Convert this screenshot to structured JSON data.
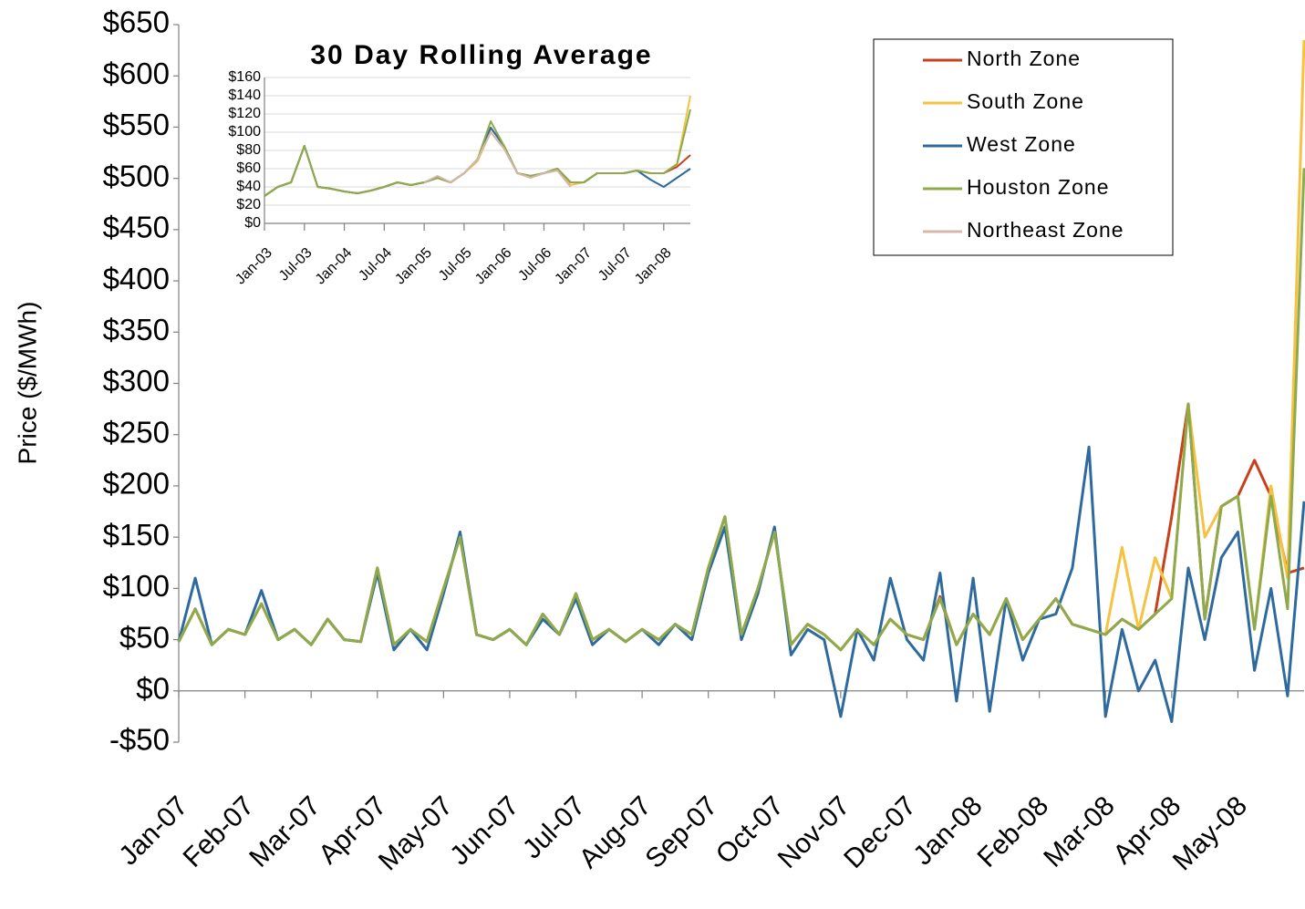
{
  "chart_data": [
    {
      "type": "line",
      "y_label": "Price ($/MWh)",
      "legend": "top-right",
      "categories": [
        "Jan-07",
        null,
        null,
        null,
        "Feb-07",
        null,
        null,
        null,
        "Mar-07",
        null,
        null,
        null,
        "Apr-07",
        null,
        null,
        null,
        "May-07",
        null,
        null,
        null,
        "Jun-07",
        null,
        null,
        null,
        "Jul-07",
        null,
        null,
        null,
        "Aug-07",
        null,
        null,
        null,
        "Sep-07",
        null,
        null,
        null,
        "Oct-07",
        null,
        null,
        null,
        "Nov-07",
        null,
        null,
        null,
        "Dec-07",
        null,
        null,
        null,
        "Jan-08",
        null,
        null,
        null,
        "Feb-08",
        null,
        null,
        null,
        "Mar-08",
        null,
        null,
        null,
        "Apr-08",
        null,
        null,
        null,
        "May-08",
        null,
        null,
        null,
        null
      ],
      "ylim": [
        -50,
        650
      ],
      "yticks": [
        {
          "value": -50,
          "label": "-$50"
        },
        {
          "value": 0,
          "label": "$0"
        },
        {
          "value": 50,
          "label": "$50"
        },
        {
          "value": 100,
          "label": "$100"
        },
        {
          "value": 150,
          "label": "$150"
        },
        {
          "value": 200,
          "label": "$200"
        },
        {
          "value": 250,
          "label": "$250"
        },
        {
          "value": 300,
          "label": "$300"
        },
        {
          "value": 350,
          "label": "$350"
        },
        {
          "value": 400,
          "label": "$400"
        },
        {
          "value": 450,
          "label": "$450"
        },
        {
          "value": 500,
          "label": "$500"
        },
        {
          "value": 550,
          "label": "$550"
        },
        {
          "value": 600,
          "label": "$600"
        },
        {
          "value": 650,
          "label": "$650"
        }
      ],
      "series": [
        {
          "name": "North Zone",
          "color": "#c8401c",
          "values": [
            48,
            80,
            45,
            60,
            55,
            85,
            50,
            60,
            45,
            70,
            50,
            48,
            120,
            45,
            60,
            48,
            100,
            150,
            55,
            50,
            60,
            45,
            75,
            55,
            95,
            50,
            60,
            48,
            60,
            50,
            65,
            55,
            120,
            170,
            55,
            100,
            155,
            45,
            65,
            55,
            40,
            60,
            45,
            70,
            55,
            50,
            92,
            45,
            75,
            55,
            90,
            50,
            70,
            90,
            65,
            60,
            55,
            70,
            60,
            75,
            170,
            280,
            70,
            180,
            190,
            225,
            190,
            115,
            120
          ]
        },
        {
          "name": "South Zone",
          "color": "#f5c242",
          "values": [
            48,
            80,
            45,
            60,
            55,
            85,
            50,
            60,
            45,
            70,
            50,
            48,
            120,
            45,
            60,
            48,
            100,
            150,
            55,
            50,
            60,
            45,
            75,
            55,
            95,
            50,
            60,
            48,
            60,
            50,
            65,
            55,
            120,
            170,
            55,
            100,
            155,
            45,
            65,
            55,
            40,
            60,
            45,
            70,
            55,
            50,
            90,
            45,
            75,
            55,
            90,
            50,
            70,
            90,
            65,
            60,
            55,
            140,
            60,
            130,
            90,
            280,
            150,
            180,
            190,
            60,
            200,
            110,
            635
          ]
        },
        {
          "name": "West Zone",
          "color": "#2e6a9e",
          "values": [
            48,
            110,
            45,
            60,
            55,
            98,
            50,
            60,
            45,
            70,
            50,
            48,
            115,
            40,
            60,
            40,
            95,
            155,
            55,
            50,
            60,
            45,
            70,
            55,
            90,
            45,
            60,
            48,
            60,
            45,
            65,
            50,
            115,
            160,
            50,
            95,
            160,
            35,
            60,
            50,
            -25,
            60,
            30,
            110,
            50,
            30,
            115,
            -10,
            110,
            -20,
            90,
            30,
            70,
            75,
            120,
            238,
            -25,
            60,
            0,
            30,
            -30,
            120,
            50,
            130,
            155,
            20,
            100,
            -5,
            185
          ]
        },
        {
          "name": "Houston Zone",
          "color": "#8eaa4c",
          "values": [
            48,
            80,
            45,
            60,
            55,
            85,
            50,
            60,
            45,
            70,
            50,
            48,
            120,
            45,
            60,
            48,
            100,
            150,
            55,
            50,
            60,
            45,
            75,
            55,
            95,
            50,
            60,
            48,
            60,
            50,
            65,
            55,
            120,
            170,
            55,
            100,
            155,
            45,
            65,
            55,
            40,
            60,
            45,
            70,
            55,
            50,
            90,
            45,
            75,
            55,
            90,
            50,
            70,
            90,
            65,
            60,
            55,
            70,
            60,
            75,
            90,
            280,
            70,
            180,
            190,
            60,
            190,
            80,
            510
          ]
        },
        {
          "name": "Northeast Zone",
          "color": "#d4b8a8",
          "values": [
            null,
            null,
            null,
            null,
            null,
            null,
            null,
            null,
            null,
            null,
            null,
            null,
            null,
            null,
            null,
            null,
            null,
            null,
            null,
            null,
            null,
            null,
            null,
            null,
            null,
            null,
            null,
            null,
            null,
            null,
            null,
            null,
            null,
            null,
            null,
            null,
            null,
            null,
            null,
            null,
            null,
            null,
            null,
            null,
            null,
            null,
            null,
            null,
            null,
            null,
            null,
            null,
            null,
            null,
            null,
            null,
            null,
            null,
            null,
            null,
            null,
            null,
            null,
            null,
            null,
            null,
            null,
            null,
            null
          ]
        }
      ]
    },
    {
      "type": "line",
      "title": "30 Day Rolling Average",
      "grid": true,
      "categories": [
        "Jan-03",
        null,
        null,
        "Jul-03",
        null,
        null,
        "Jan-04",
        null,
        null,
        "Jul-04",
        null,
        null,
        "Jan-05",
        null,
        null,
        "Jul-05",
        null,
        null,
        "Jan-06",
        null,
        null,
        "Jul-06",
        null,
        null,
        "Jan-07",
        null,
        null,
        "Jul-07",
        null,
        null,
        "Jan-08",
        null,
        null
      ],
      "ylim": [
        0,
        160
      ],
      "yticks": [
        {
          "value": 0,
          "label": "$0"
        },
        {
          "value": 20,
          "label": "$20"
        },
        {
          "value": 40,
          "label": "$40"
        },
        {
          "value": 60,
          "label": "$60"
        },
        {
          "value": 80,
          "label": "$80"
        },
        {
          "value": 100,
          "label": "$100"
        },
        {
          "value": 120,
          "label": "$120"
        },
        {
          "value": 140,
          "label": "$140"
        },
        {
          "value": 160,
          "label": "$160"
        }
      ],
      "series": [
        {
          "color": "#c8401c",
          "values": [
            30,
            40,
            45,
            85,
            40,
            38,
            35,
            33,
            36,
            40,
            45,
            42,
            45,
            50,
            45,
            55,
            70,
            105,
            85,
            55,
            52,
            55,
            60,
            45,
            45,
            55,
            55,
            55,
            58,
            55,
            55,
            62,
            75
          ]
        },
        {
          "color": "#f5c242",
          "values": [
            30,
            40,
            45,
            85,
            40,
            38,
            35,
            33,
            36,
            40,
            45,
            42,
            45,
            50,
            45,
            55,
            68,
            100,
            82,
            55,
            52,
            55,
            58,
            42,
            45,
            55,
            55,
            55,
            58,
            55,
            55,
            65,
            140
          ]
        },
        {
          "color": "#2e6a9e",
          "values": [
            30,
            40,
            45,
            85,
            40,
            38,
            35,
            33,
            36,
            40,
            45,
            42,
            45,
            50,
            45,
            55,
            70,
            105,
            85,
            55,
            52,
            55,
            60,
            45,
            45,
            55,
            55,
            55,
            58,
            48,
            40,
            50,
            60
          ]
        },
        {
          "color": "#8eaa4c",
          "values": [
            30,
            40,
            45,
            85,
            40,
            38,
            35,
            33,
            36,
            40,
            45,
            42,
            45,
            50,
            45,
            55,
            70,
            112,
            85,
            55,
            52,
            55,
            60,
            45,
            45,
            55,
            55,
            55,
            58,
            55,
            55,
            65,
            125
          ]
        },
        {
          "color": "#d4b8a8",
          "values": [
            null,
            null,
            null,
            null,
            null,
            null,
            null,
            null,
            null,
            null,
            null,
            null,
            45,
            52,
            45,
            55,
            70,
            100,
            82,
            55,
            50,
            55,
            58,
            40,
            null,
            null,
            null,
            null,
            null,
            null,
            null,
            null,
            null
          ]
        }
      ]
    }
  ]
}
